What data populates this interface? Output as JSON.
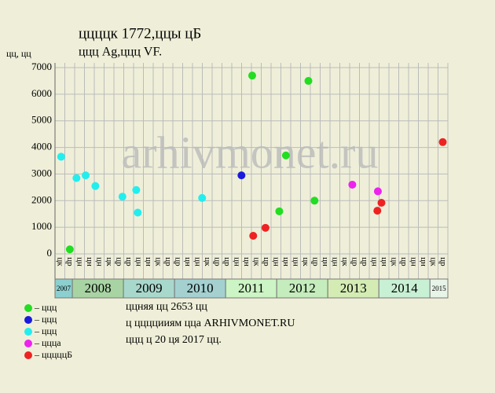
{
  "chart_data": {
    "type": "scatter",
    "title": "ццццк 1772,ццы цБ",
    "subtitle": "ццц Ag,ццц VF.",
    "y_label": "цц, цц",
    "watermark": "arhivmonet.ru",
    "xlim": [
      2007.66,
      2015.35
    ],
    "ylim": [
      0,
      7000
    ],
    "yticks": [
      0,
      1000,
      2000,
      3000,
      4000,
      5000,
      6000,
      7000
    ],
    "grid": true,
    "column_labels": [
      "цк",
      "цр",
      "цн",
      "цн",
      "цн",
      "цк",
      "цр",
      "цр",
      "цн",
      "цн",
      "цк",
      "цр",
      "цр",
      "цн",
      "цн",
      "цк",
      "цр",
      "цр",
      "цн",
      "цн",
      "цк",
      "цр",
      "цн",
      "цн",
      "цн",
      "цк",
      "цр",
      "цн",
      "цн",
      "цк",
      "цр",
      "цр",
      "цн",
      "цн",
      "цк",
      "цр",
      "цн",
      "цн",
      "цк",
      "цр"
    ],
    "years": [
      {
        "label": "2007",
        "start": 2007.66,
        "end": 2008,
        "color": "#8ccfcf"
      },
      {
        "label": "2008",
        "start": 2008,
        "end": 2009,
        "color": "#a8d4a4"
      },
      {
        "label": "2009",
        "start": 2009,
        "end": 2010,
        "color": "#a8d8cc"
      },
      {
        "label": "2010",
        "start": 2010,
        "end": 2011,
        "color": "#a4d0d0"
      },
      {
        "label": "2011",
        "start": 2011,
        "end": 2012,
        "color": "#ccf4c4"
      },
      {
        "label": "2012",
        "start": 2012,
        "end": 2013,
        "color": "#c4ecbc"
      },
      {
        "label": "2013",
        "start": 2013,
        "end": 2014,
        "color": "#d4ecb4"
      },
      {
        "label": "2014",
        "start": 2014,
        "end": 2015,
        "color": "#c8f0d4"
      },
      {
        "label": "2015",
        "start": 2015,
        "end": 2015.35,
        "color": "#e8f4e8"
      }
    ],
    "series": [
      {
        "name": "– ццц",
        "color": "#22dd22",
        "x": [
          2007.95,
          2011.52,
          2012.05,
          2012.18,
          2012.62,
          2012.74
        ],
        "values": [
          170,
          6700,
          1600,
          3700,
          6500,
          2000
        ]
      },
      {
        "name": "– ццц",
        "color": "#1a1add",
        "x": [
          2011.31
        ],
        "values": [
          2950
        ]
      },
      {
        "name": "– ццц",
        "color": "#22eeee",
        "x": [
          2007.78,
          2008.08,
          2008.26,
          2008.45,
          2008.98,
          2009.25,
          2009.28,
          2010.54
        ],
        "values": [
          3650,
          2850,
          2950,
          2550,
          2150,
          2400,
          1550,
          2100
        ]
      },
      {
        "name": "– ццца",
        "color": "#ee22ee",
        "x": [
          2013.48,
          2013.98
        ],
        "values": [
          2600,
          2350
        ]
      },
      {
        "name": "– цццццБ",
        "color": "#ee2222",
        "x": [
          2011.54,
          2011.78,
          2013.97,
          2014.05,
          2015.25
        ],
        "values": [
          680,
          980,
          1620,
          1920,
          4200
        ]
      }
    ],
    "notes": [
      "ццняя цц 2653 цц",
      "ц ццццииям цца ARHIVMONET.RU",
      "ццц ц 20 ця 2017 цц."
    ]
  }
}
